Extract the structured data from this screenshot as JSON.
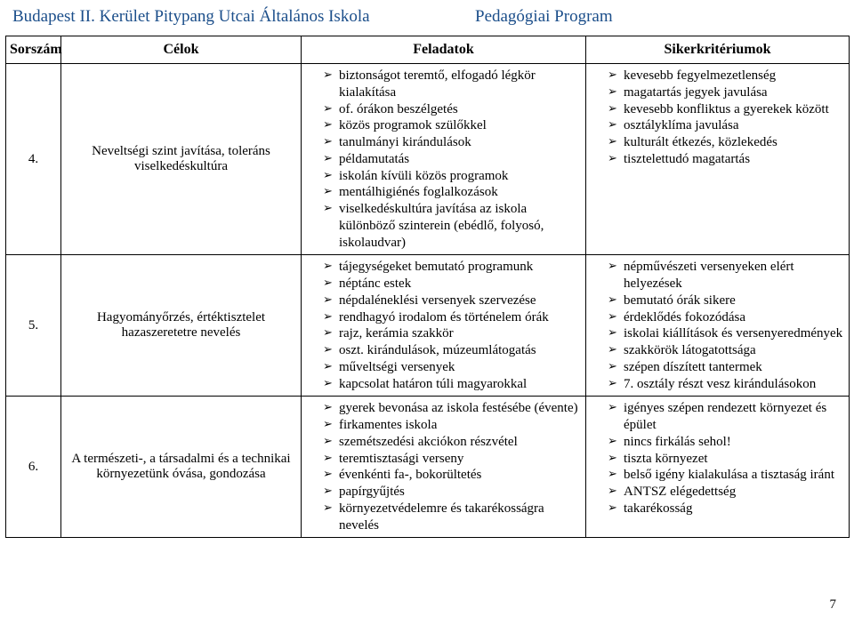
{
  "header": {
    "left": "Budapest II. Kerület Pitypang Utcai Általános Iskola",
    "right": "Pedagógiai Program"
  },
  "table": {
    "headers": [
      "Sorszám",
      "Célok",
      "Feladatok",
      "Sikerkritériumok"
    ],
    "rows": [
      {
        "num": "4.",
        "goal": "Neveltségi szint javítása, toleráns viselkedéskultúra",
        "tasks": [
          "biztonságot teremtő, elfogadó légkör kialakítása",
          "of. órákon beszélgetés",
          "közös programok szülőkkel",
          "tanulmányi kirándulások",
          "példamutatás",
          "iskolán kívüli közös programok",
          "mentálhigiénés foglalkozások",
          "viselkedéskultúra javítása az iskola különböző szinterein (ebédlő, folyosó, iskolaudvar)"
        ],
        "criteria": [
          "kevesebb fegyelmezetlenség",
          "magatartás jegyek javulása",
          "kevesebb konfliktus a gyerekek között",
          "osztályklíma javulása",
          "kulturált étkezés, közlekedés",
          "tisztelettudó magatartás"
        ]
      },
      {
        "num": "5.",
        "goal": "Hagyományőrzés, értéktisztelet hazaszeretetre nevelés",
        "tasks": [
          "tájegységeket bemutató programunk",
          "néptánc estek",
          "népdaléneklési versenyek szervezése",
          "rendhagyó irodalom és történelem órák",
          "rajz, kerámia szakkör",
          "oszt. kirándulások, múzeumlátogatás",
          "műveltségi versenyek",
          "kapcsolat határon túli magyarokkal"
        ],
        "criteria": [
          "népművészeti versenyeken elért helyezések",
          "bemutató órák sikere",
          "érdeklődés fokozódása",
          "iskolai kiállítások és versenyeredmények",
          "szakkörök látogatottsága",
          "szépen díszített tantermek",
          "7. osztály részt vesz kirándulásokon"
        ]
      },
      {
        "num": "6.",
        "goal": "A természeti-, a társadalmi és a technikai környezetünk óvása, gondozása",
        "tasks": [
          "gyerek bevonása az iskola festésébe (évente)",
          "firkamentes iskola",
          "szemétszedési akciókon részvétel",
          "teremtisztasági verseny",
          "évenkénti fa-, bokorültetés",
          "papírgyűjtés",
          "környezetvédelemre és takarékosságra nevelés"
        ],
        "criteria": [
          "igényes szépen rendezett környezet és épület",
          "nincs firkálás sehol!",
          "tiszta környezet",
          "belső igény kialakulása a tisztaság iránt",
          "ANTSZ elégedettség",
          "takarékosság"
        ]
      }
    ]
  },
  "page_number": "7"
}
